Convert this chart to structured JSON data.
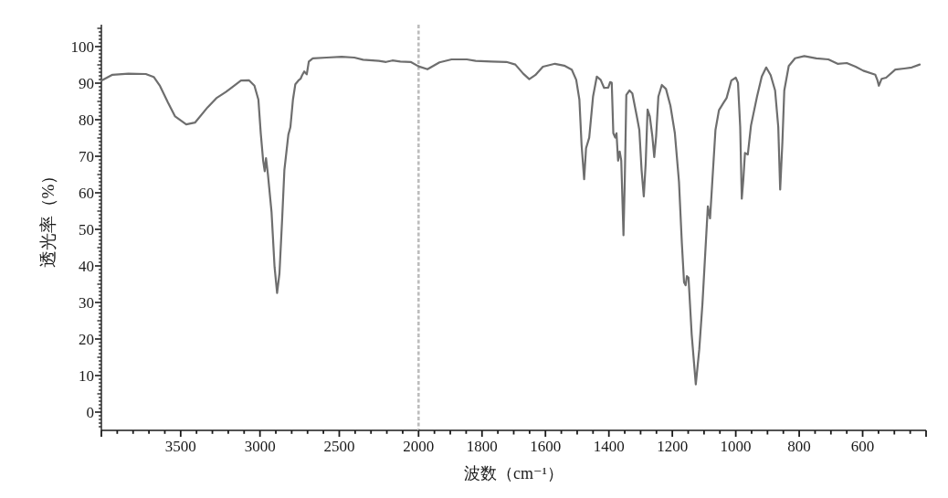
{
  "chart_data": [
    {
      "type": "line",
      "ylabel": "透光率（%）",
      "color": "#6e6e6e",
      "x": [
        4000,
        3930,
        3830,
        3720,
        3670,
        3630,
        3580,
        3535,
        3465,
        3410,
        3330,
        3275,
        3215,
        3120,
        3070,
        3035,
        3010,
        2995,
        2980,
        2970,
        2962,
        2950,
        2927,
        2908,
        2892,
        2877,
        2860,
        2846,
        2821,
        2808,
        2792,
        2777,
        2758,
        2744,
        2734,
        2721,
        2705,
        2692,
        2667,
        2580,
        2485,
        2405,
        2350,
        2250,
        2205,
        2165,
        2115,
        2050,
        2000
      ],
      "values": [
        90.7,
        92.3,
        92.6,
        92.5,
        91.7,
        89.2,
        84.7,
        80.9,
        78.7,
        79.2,
        83.4,
        85.9,
        87.6,
        90.7,
        90.8,
        89.3,
        85.5,
        76.3,
        68.8,
        65.9,
        69.5,
        65.1,
        54.7,
        39.7,
        32.6,
        38.0,
        53.0,
        66.3,
        75.9,
        78.0,
        85.5,
        89.7,
        90.7,
        91.2,
        92.2,
        93.2,
        92.4,
        95.9,
        96.8,
        97.0,
        97.2,
        97.0,
        96.4,
        96.1,
        95.8,
        96.2,
        95.9,
        95.8,
        94.6
      ],
      "xlim": [
        4000,
        2000
      ],
      "ylim": [
        -5,
        106
      ],
      "xticks": [
        {
          "value": 4000,
          "label": null
        },
        3500,
        3000,
        2500
      ],
      "yticks": [
        0,
        10,
        20,
        30,
        40,
        50,
        60,
        70,
        80,
        90,
        100
      ]
    },
    {
      "type": "line",
      "xlabel": "波数（cm⁻¹）",
      "color": "#6e6e6e",
      "x": [
        2000,
        1972,
        1934,
        1896,
        1848,
        1820,
        1770,
        1723,
        1695,
        1670,
        1651,
        1632,
        1608,
        1570,
        1541,
        1517,
        1503,
        1493,
        1486,
        1478,
        1472,
        1462,
        1450,
        1438,
        1426,
        1415,
        1402,
        1396,
        1391,
        1386,
        1380,
        1376,
        1371,
        1366,
        1361,
        1354,
        1350,
        1345,
        1335,
        1326,
        1311,
        1304,
        1297,
        1290,
        1284,
        1278,
        1271,
        1263,
        1257,
        1251,
        1244,
        1233,
        1220,
        1206,
        1192,
        1179,
        1170,
        1163,
        1158,
        1154,
        1149,
        1139,
        1126,
        1115,
        1105,
        1088,
        1081,
        1074,
        1064,
        1053,
        1038,
        1029,
        1014,
        1000,
        993,
        986,
        981,
        976,
        971,
        962,
        952,
        933,
        918,
        904,
        890,
        876,
        866,
        860,
        853,
        847,
        833,
        813,
        784,
        746,
        708,
        679,
        650,
        622,
        598,
        560,
        553,
        549,
        540,
        526,
        497,
        469,
        445,
        420
      ],
      "values": [
        94.6,
        93.8,
        95.7,
        96.5,
        96.5,
        96.1,
        95.9,
        95.8,
        95.1,
        92.6,
        91.1,
        92.2,
        94.5,
        95.3,
        94.8,
        93.7,
        90.9,
        85.5,
        73.0,
        63.7,
        72.2,
        75.1,
        86.3,
        91.8,
        90.9,
        88.7,
        88.8,
        90.3,
        90.1,
        76.3,
        75.1,
        76.3,
        68.8,
        71.3,
        68.8,
        48.4,
        63.0,
        86.8,
        88.0,
        87.2,
        80.5,
        77.2,
        66.3,
        59.0,
        68.0,
        82.8,
        80.9,
        75.5,
        69.8,
        75.5,
        86.3,
        89.5,
        88.4,
        83.8,
        76.3,
        63.0,
        46.3,
        35.5,
        34.7,
        37.2,
        36.8,
        21.3,
        7.6,
        17.2,
        29.7,
        56.3,
        53.0,
        63.0,
        77.2,
        82.6,
        84.7,
        85.9,
        90.7,
        91.5,
        90.1,
        78.0,
        58.4,
        63.8,
        70.9,
        70.5,
        78.4,
        86.3,
        91.8,
        94.3,
        92.2,
        88.0,
        78.0,
        60.9,
        73.8,
        88.0,
        94.7,
        96.8,
        97.4,
        96.8,
        96.5,
        95.3,
        95.5,
        94.5,
        93.4,
        92.3,
        90.7,
        89.3,
        91.2,
        91.5,
        93.7,
        94.0,
        94.3,
        95.1
      ],
      "xlim": [
        2000,
        400
      ],
      "ylim": [
        -5,
        106
      ],
      "xticks": [
        2000,
        1800,
        1600,
        1400,
        1200,
        1000,
        800,
        600,
        {
          "value": 400,
          "label": null
        }
      ],
      "tick_labels": "x",
      "ref_lines": [
        {
          "axis": "x",
          "value": 2000,
          "color": "#bdbdbd",
          "line_style": "dashed"
        }
      ]
    }
  ]
}
